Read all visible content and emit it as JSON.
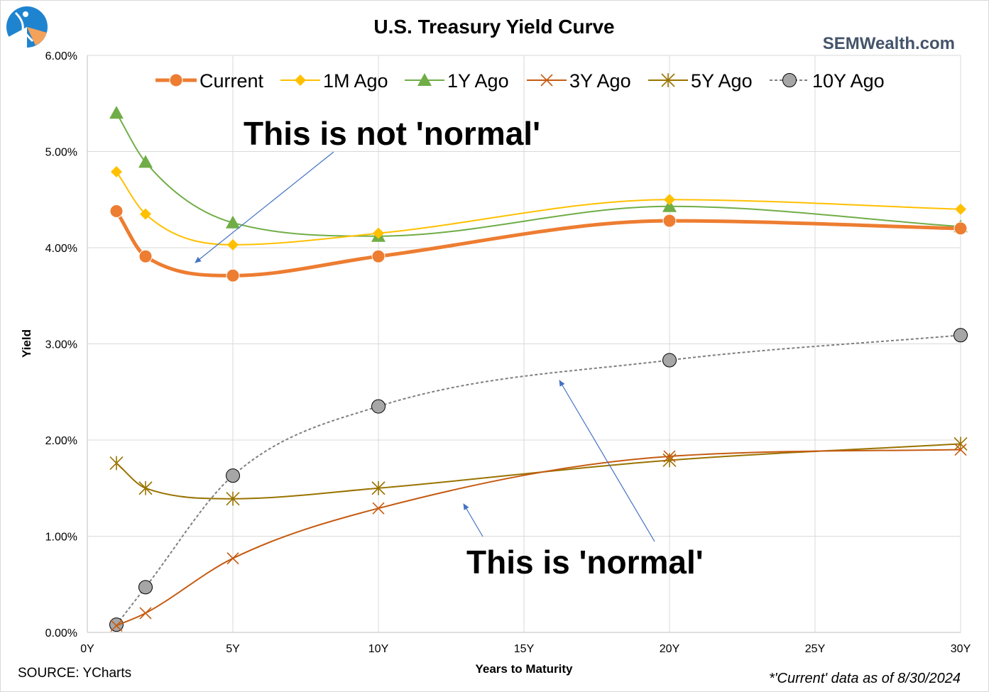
{
  "title": "U.S. Treasury Yield Curve",
  "brand": "SEMWealth.com",
  "source": "SOURCE: YCharts",
  "note": "*'Current' data as of 8/30/2024",
  "annotations": {
    "not_normal": "This is not 'normal'",
    "normal": "This is 'normal'"
  },
  "colors": {
    "logo_blue": "#1f84d0",
    "logo_orange": "#f4a259",
    "grid": "#d9d9d9",
    "arrow": "#4472c4"
  },
  "chart_data": {
    "type": "line",
    "title": "U.S. Treasury Yield Curve",
    "xlabel": "Years to Maturity",
    "ylabel": "Yield",
    "xlim": [
      0,
      30
    ],
    "ylim": [
      0,
      6
    ],
    "x_ticks": [
      "0Y",
      "5Y",
      "10Y",
      "15Y",
      "20Y",
      "25Y",
      "30Y"
    ],
    "x_tick_values": [
      0,
      5,
      10,
      15,
      20,
      25,
      30
    ],
    "y_ticks": [
      "0.00%",
      "1.00%",
      "2.00%",
      "3.00%",
      "4.00%",
      "5.00%",
      "6.00%"
    ],
    "y_tick_values": [
      0,
      1,
      2,
      3,
      4,
      5,
      6
    ],
    "grid": true,
    "legend_position": "top",
    "x": [
      1,
      2,
      5,
      10,
      20,
      30
    ],
    "series": [
      {
        "name": "Current",
        "values": [
          4.38,
          3.91,
          3.71,
          3.91,
          4.28,
          4.2
        ],
        "color": "#ed7d31",
        "marker": "circle",
        "dash": "solid",
        "width": 5
      },
      {
        "name": "1M Ago",
        "values": [
          4.79,
          4.35,
          4.03,
          4.15,
          4.5,
          4.4
        ],
        "color": "#ffc000",
        "marker": "diamond",
        "dash": "solid",
        "width": 2
      },
      {
        "name": "1Y Ago",
        "values": [
          5.4,
          4.89,
          4.26,
          4.12,
          4.43,
          4.22
        ],
        "color": "#70ad47",
        "marker": "triangle",
        "dash": "solid",
        "width": 2
      },
      {
        "name": "3Y Ago",
        "values": [
          0.07,
          0.2,
          0.77,
          1.29,
          1.83,
          1.9
        ],
        "color": "#c55a11",
        "marker": "x",
        "dash": "solid",
        "width": 2
      },
      {
        "name": "5Y Ago",
        "values": [
          1.76,
          1.5,
          1.39,
          1.5,
          1.79,
          1.96
        ],
        "color": "#997300",
        "marker": "star",
        "dash": "solid",
        "width": 2
      },
      {
        "name": "10Y Ago",
        "values": [
          0.08,
          0.47,
          1.63,
          2.35,
          2.83,
          3.09
        ],
        "color": "#7f7f7f",
        "marker": "circle-gray",
        "dash": "4 3",
        "width": 2
      }
    ]
  }
}
